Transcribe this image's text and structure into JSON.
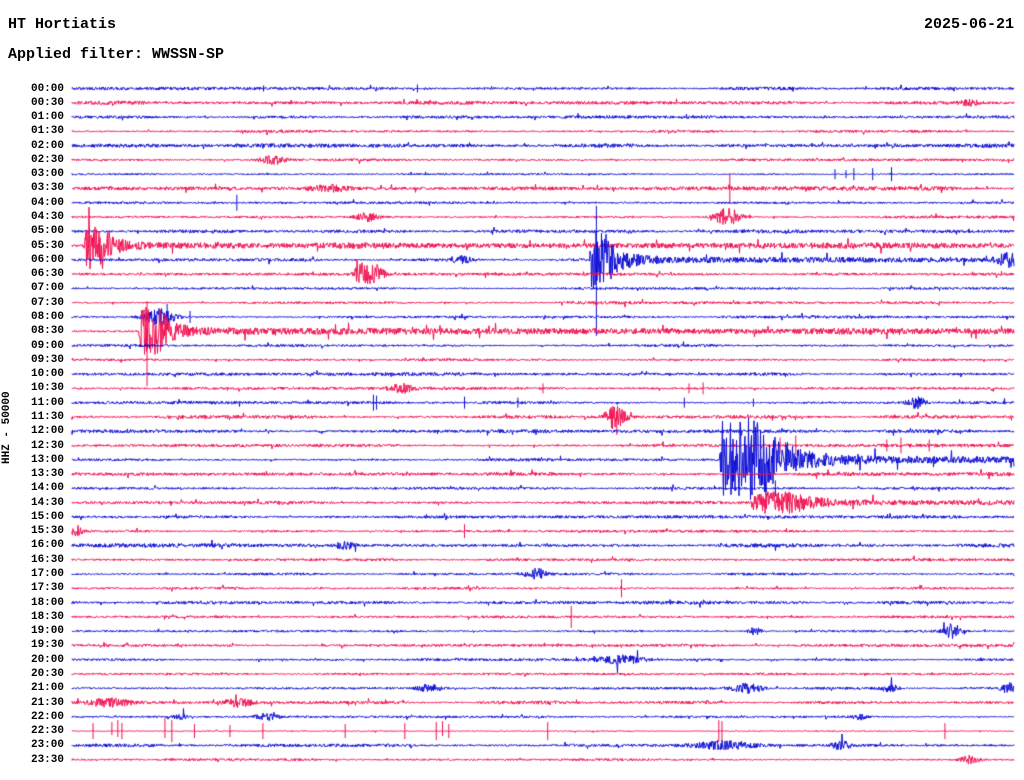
{
  "chart_data": {
    "type": "helicorder",
    "title": "HT Hortiatis",
    "date": "2025-06-21",
    "filter": "Applied filter: WWSSN-SP",
    "y_axis_label": "HHZ - 50000",
    "minutes_per_line": 30,
    "legend_position": "none",
    "grid": false,
    "colors": {
      "blue": "#0c0cd4",
      "red": "#f01050",
      "text": "#000000",
      "background": "#ffffff"
    },
    "rows": [
      {
        "time": "00:00",
        "color": "blue",
        "noise": 1.2,
        "events": [
          {
            "type": "spike",
            "t": 6.1,
            "up": 3,
            "down": 3
          },
          {
            "type": "spike",
            "t": 11.0,
            "up": 4,
            "down": 4
          }
        ]
      },
      {
        "time": "00:30",
        "color": "red",
        "noise": 1.3,
        "events": [
          {
            "type": "burst",
            "t": 28.6,
            "amp": 3,
            "sigma": 0.2
          }
        ]
      },
      {
        "time": "01:00",
        "color": "blue",
        "noise": 1.1,
        "events": []
      },
      {
        "time": "01:30",
        "color": "red",
        "noise": 1.0,
        "events": []
      },
      {
        "time": "02:00",
        "color": "blue",
        "noise": 1.5,
        "events": []
      },
      {
        "time": "02:30",
        "color": "red",
        "noise": 1.0,
        "events": [
          {
            "type": "burst",
            "t": 6.4,
            "amp": 4,
            "sigma": 0.3
          }
        ]
      },
      {
        "time": "03:00",
        "color": "blue",
        "noise": 0.8,
        "events": [
          {
            "type": "spike",
            "t": 24.3,
            "up": 5,
            "down": 5
          },
          {
            "type": "spike",
            "t": 24.65,
            "up": 4,
            "down": 4
          },
          {
            "type": "spike",
            "t": 24.9,
            "up": 6,
            "down": 6
          },
          {
            "type": "spike",
            "t": 25.5,
            "up": 6,
            "down": 6
          },
          {
            "type": "spike",
            "t": 26.1,
            "up": 7,
            "down": 7
          }
        ]
      },
      {
        "time": "03:30",
        "color": "red",
        "noise": 1.4,
        "events": [
          {
            "type": "burst",
            "t": 8.2,
            "amp": 3,
            "sigma": 0.4
          },
          {
            "type": "spike",
            "t": 20.95,
            "up": 15,
            "down": 15
          }
        ]
      },
      {
        "time": "04:00",
        "color": "blue",
        "noise": 0.9,
        "events": [
          {
            "type": "spike",
            "t": 5.25,
            "up": 8,
            "down": 8
          }
        ]
      },
      {
        "time": "04:30",
        "color": "red",
        "noise": 1.1,
        "events": [
          {
            "type": "burst",
            "t": 9.4,
            "amp": 4,
            "sigma": 0.25
          },
          {
            "type": "burst",
            "t": 20.9,
            "amp": 9,
            "sigma": 0.3
          }
        ]
      },
      {
        "time": "05:00",
        "color": "blue",
        "noise": 1.3,
        "events": []
      },
      {
        "time": "05:30",
        "color": "red",
        "noise": 1.1,
        "events": [
          {
            "type": "quake",
            "t": 0.45,
            "env": [
              [
                0,
                23
              ],
              [
                0.5,
                23
              ],
              [
                0.9,
                8
              ],
              [
                1.4,
                3.5
              ],
              [
                2.2,
                2
              ],
              [
                29,
                1.3
              ]
            ]
          }
        ]
      },
      {
        "time": "06:00",
        "color": "blue",
        "noise": 1.1,
        "events": [
          {
            "type": "burst",
            "t": 12.4,
            "amp": 4,
            "sigma": 0.2
          },
          {
            "type": "quake",
            "t": 16.55,
            "env": [
              [
                0,
                30
              ],
              [
                0.35,
                30
              ],
              [
                0.7,
                14
              ],
              [
                1.1,
                7
              ],
              [
                1.7,
                3.5
              ],
              [
                2.6,
                2
              ],
              [
                13,
                1.4
              ]
            ]
          },
          {
            "type": "spike",
            "t": 16.7,
            "up": 54,
            "down": 76
          },
          {
            "type": "burst",
            "t": 29.8,
            "amp": 6,
            "sigma": 0.25
          }
        ]
      },
      {
        "time": "06:30",
        "color": "red",
        "noise": 1.2,
        "events": [
          {
            "type": "burst",
            "t": 9.2,
            "amp": 9,
            "sigma": 0.15
          },
          {
            "type": "burst",
            "t": 9.6,
            "amp": 10,
            "sigma": 0.22
          }
        ]
      },
      {
        "time": "07:00",
        "color": "blue",
        "noise": 0.9,
        "events": []
      },
      {
        "time": "07:30",
        "color": "red",
        "noise": 1.1,
        "events": []
      },
      {
        "time": "08:00",
        "color": "blue",
        "noise": 1.0,
        "events": [
          {
            "type": "burst",
            "t": 2.8,
            "amp": 8,
            "sigma": 0.35
          },
          {
            "type": "spike",
            "t": 3.03,
            "up": 13,
            "down": 13
          },
          {
            "type": "spike",
            "t": 3.76,
            "up": 6,
            "down": 6
          }
        ]
      },
      {
        "time": "08:30",
        "color": "red",
        "noise": 1.1,
        "events": [
          {
            "type": "quake",
            "t": 2.2,
            "env": [
              [
                0,
                24
              ],
              [
                0.5,
                24
              ],
              [
                1.0,
                9
              ],
              [
                1.6,
                4
              ],
              [
                2.5,
                2.5
              ],
              [
                27,
                1.5
              ]
            ]
          },
          {
            "type": "spike",
            "t": 2.39,
            "up": 30,
            "down": 55
          }
        ]
      },
      {
        "time": "09:00",
        "color": "blue",
        "noise": 1.0,
        "events": []
      },
      {
        "time": "09:30",
        "color": "red",
        "noise": 0.9,
        "events": []
      },
      {
        "time": "10:00",
        "color": "blue",
        "noise": 1.2,
        "events": []
      },
      {
        "time": "10:30",
        "color": "red",
        "noise": 1.1,
        "events": [
          {
            "type": "burst",
            "t": 10.5,
            "amp": 4,
            "sigma": 0.25
          },
          {
            "type": "spike",
            "t": 15.0,
            "up": 5,
            "down": 5
          },
          {
            "type": "spike",
            "t": 19.65,
            "up": 5,
            "down": 5
          },
          {
            "type": "spike",
            "t": 20.1,
            "up": 6,
            "down": 6
          }
        ]
      },
      {
        "time": "11:00",
        "color": "blue",
        "noise": 1.1,
        "events": [
          {
            "type": "spike",
            "t": 9.6,
            "up": 8,
            "down": 8
          },
          {
            "type": "spike",
            "t": 9.7,
            "up": 7,
            "down": 7
          },
          {
            "type": "spike",
            "t": 12.5,
            "up": 6,
            "down": 6
          },
          {
            "type": "spike",
            "t": 14.2,
            "up": 5,
            "down": 5
          },
          {
            "type": "spike",
            "t": 19.5,
            "up": 5,
            "down": 5
          },
          {
            "type": "spike",
            "t": 21.7,
            "up": 4,
            "down": 4
          },
          {
            "type": "burst",
            "t": 26.9,
            "amp": 6,
            "sigma": 0.2
          }
        ]
      },
      {
        "time": "11:30",
        "color": "red",
        "noise": 1.2,
        "events": [
          {
            "type": "burst",
            "t": 17.3,
            "amp": 12,
            "sigma": 0.22
          },
          {
            "type": "spike",
            "t": 17.35,
            "up": 6,
            "down": 18
          }
        ]
      },
      {
        "time": "12:00",
        "color": "blue",
        "noise": 1.3,
        "events": []
      },
      {
        "time": "12:30",
        "color": "red",
        "noise": 1.2,
        "events": [
          {
            "type": "spike",
            "t": 22.55,
            "up": 8,
            "down": 8
          },
          {
            "type": "spike",
            "t": 23.05,
            "up": 10,
            "down": 10
          },
          {
            "type": "spike",
            "t": 25.95,
            "up": 6,
            "down": 6
          },
          {
            "type": "spike",
            "t": 26.4,
            "up": 8,
            "down": 8
          },
          {
            "type": "spike",
            "t": 27.3,
            "up": 6,
            "down": 6
          }
        ]
      },
      {
        "time": "13:00",
        "color": "blue",
        "noise": 1.1,
        "events": [
          {
            "type": "quake",
            "t": 20.7,
            "env": [
              [
                0,
                41
              ],
              [
                1.1,
                41
              ],
              [
                1.8,
                18
              ],
              [
                2.6,
                9
              ],
              [
                3.6,
                5
              ],
              [
                5,
                3
              ],
              [
                9.3,
                2.2
              ]
            ]
          }
        ]
      },
      {
        "time": "13:30",
        "color": "red",
        "noise": 1.4,
        "events": []
      },
      {
        "time": "14:00",
        "color": "blue",
        "noise": 1.1,
        "events": [
          {
            "type": "spike",
            "t": 22.1,
            "up": 6,
            "down": 6
          },
          {
            "type": "spike",
            "t": 22.4,
            "up": 8,
            "down": 8
          }
        ]
      },
      {
        "time": "14:30",
        "color": "red",
        "noise": 1.1,
        "events": [
          {
            "type": "quake",
            "t": 21.7,
            "env": [
              [
                0,
                10
              ],
              [
                1.2,
                10
              ],
              [
                1.9,
                5
              ],
              [
                2.6,
                2.5
              ],
              [
                4,
                1.5
              ],
              [
                8.3,
                1.2
              ]
            ]
          }
        ]
      },
      {
        "time": "15:00",
        "color": "blue",
        "noise": 1.2,
        "events": []
      },
      {
        "time": "15:30",
        "color": "red",
        "noise": 1.0,
        "events": [
          {
            "type": "burst",
            "t": 0.1,
            "amp": 6,
            "sigma": 0.15
          },
          {
            "type": "spike",
            "t": 12.5,
            "up": 7,
            "down": 7
          }
        ]
      },
      {
        "time": "16:00",
        "color": "blue",
        "noise": 1.4,
        "events": [
          {
            "type": "burst",
            "t": 8.7,
            "amp": 4,
            "sigma": 0.2
          }
        ]
      },
      {
        "time": "16:30",
        "color": "red",
        "noise": 1.0,
        "events": []
      },
      {
        "time": "17:00",
        "color": "blue",
        "noise": 1.0,
        "events": [
          {
            "type": "burst",
            "t": 14.8,
            "amp": 5,
            "sigma": 0.25
          }
        ]
      },
      {
        "time": "17:30",
        "color": "red",
        "noise": 0.9,
        "events": [
          {
            "type": "spike",
            "t": 17.5,
            "up": 9,
            "down": 9
          }
        ]
      },
      {
        "time": "18:00",
        "color": "blue",
        "noise": 1.3,
        "events": []
      },
      {
        "time": "18:30",
        "color": "red",
        "noise": 0.9,
        "events": [
          {
            "type": "spike",
            "t": 15.9,
            "up": 11,
            "down": 11
          }
        ]
      },
      {
        "time": "19:00",
        "color": "blue",
        "noise": 0.9,
        "events": [
          {
            "type": "burst",
            "t": 21.75,
            "amp": 4,
            "sigma": 0.15
          },
          {
            "type": "burst",
            "t": 28.05,
            "amp": 7,
            "sigma": 0.2
          }
        ]
      },
      {
        "time": "19:30",
        "color": "red",
        "noise": 1.0,
        "events": []
      },
      {
        "time": "20:00",
        "color": "blue",
        "noise": 1.0,
        "events": [
          {
            "type": "burst",
            "t": 17.45,
            "amp": 4,
            "sigma": 0.5
          }
        ]
      },
      {
        "time": "20:30",
        "color": "red",
        "noise": 0.9,
        "events": []
      },
      {
        "time": "21:00",
        "color": "blue",
        "noise": 1.0,
        "events": [
          {
            "type": "burst",
            "t": 11.4,
            "amp": 4,
            "sigma": 0.3
          },
          {
            "type": "burst",
            "t": 21.5,
            "amp": 5,
            "sigma": 0.35
          },
          {
            "type": "burst",
            "t": 26.05,
            "amp": 4,
            "sigma": 0.2
          },
          {
            "type": "burst",
            "t": 29.85,
            "amp": 5,
            "sigma": 0.2
          }
        ]
      },
      {
        "time": "21:30",
        "color": "red",
        "noise": 1.2,
        "events": [
          {
            "type": "burst",
            "t": 1.2,
            "amp": 4,
            "sigma": 0.5
          },
          {
            "type": "burst",
            "t": 5.3,
            "amp": 4,
            "sigma": 0.3
          }
        ]
      },
      {
        "time": "22:00",
        "color": "blue",
        "noise": 0.8,
        "events": [
          {
            "type": "burst",
            "t": 3.45,
            "amp": 3,
            "sigma": 0.15
          },
          {
            "type": "burst",
            "t": 6.2,
            "amp": 3,
            "sigma": 0.25
          },
          {
            "type": "burst",
            "t": 25.1,
            "amp": 3,
            "sigma": 0.15
          }
        ]
      },
      {
        "time": "22:30",
        "color": "red",
        "noise": 0.4,
        "events": [
          {
            "type": "spike",
            "t": 0.67,
            "up": 8,
            "down": 8
          },
          {
            "type": "spike",
            "t": 1.27,
            "up": 9,
            "down": 4
          },
          {
            "type": "spike",
            "t": 1.46,
            "up": 11,
            "down": 6
          },
          {
            "type": "spike",
            "t": 1.59,
            "up": 8,
            "down": 8
          },
          {
            "type": "spike",
            "t": 2.96,
            "up": 13,
            "down": 7
          },
          {
            "type": "spike",
            "t": 3.18,
            "up": 11,
            "down": 11
          },
          {
            "type": "spike",
            "t": 3.9,
            "up": 7,
            "down": 7
          },
          {
            "type": "spike",
            "t": 5.03,
            "up": 6,
            "down": 6
          },
          {
            "type": "spike",
            "t": 6.08,
            "up": 8,
            "down": 8
          },
          {
            "type": "spike",
            "t": 8.7,
            "up": 7,
            "down": 7
          },
          {
            "type": "spike",
            "t": 10.6,
            "up": 8,
            "down": 8
          },
          {
            "type": "spike",
            "t": 11.6,
            "up": 9,
            "down": 9
          },
          {
            "type": "spike",
            "t": 11.8,
            "up": 10,
            "down": 5
          },
          {
            "type": "spike",
            "t": 12.0,
            "up": 7,
            "down": 7
          },
          {
            "type": "spike",
            "t": 15.15,
            "up": 9,
            "down": 9
          },
          {
            "type": "spike",
            "t": 20.6,
            "up": 11,
            "down": 11
          },
          {
            "type": "spike",
            "t": 20.7,
            "up": 10,
            "down": 10
          },
          {
            "type": "spike",
            "t": 27.8,
            "up": 8,
            "down": 8
          }
        ]
      },
      {
        "time": "23:00",
        "color": "blue",
        "noise": 1.1,
        "events": [
          {
            "type": "burst",
            "t": 20.8,
            "amp": 4,
            "sigma": 0.7
          },
          {
            "type": "burst",
            "t": 24.5,
            "amp": 4,
            "sigma": 0.2
          }
        ]
      },
      {
        "time": "23:30",
        "color": "red",
        "noise": 0.9,
        "events": [
          {
            "type": "burst",
            "t": 28.6,
            "amp": 4,
            "sigma": 0.2
          }
        ]
      }
    ]
  }
}
